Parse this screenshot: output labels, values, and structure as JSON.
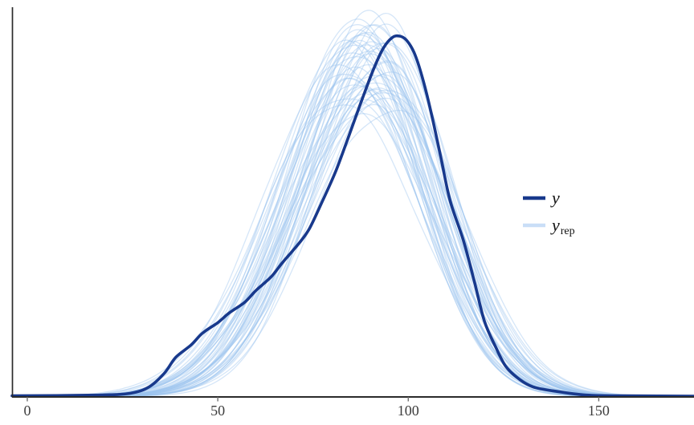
{
  "chart_data": {
    "type": "area",
    "subtype": "density_overlay",
    "title": "",
    "xlabel": "",
    "ylabel": "",
    "x_ticks": [
      0,
      50,
      100,
      150
    ],
    "xlim": [
      -4,
      175
    ],
    "ylim": [
      0,
      1.12
    ],
    "grid": "off",
    "legend_position": "right-middle",
    "y_density": {
      "name": "y",
      "x": [
        -4,
        18,
        27,
        32,
        36,
        39,
        43,
        46,
        50,
        53,
        57,
        60,
        64,
        67,
        71,
        74,
        77.5,
        81,
        84.5,
        88,
        91,
        93.5,
        95.8,
        97.7,
        99.5,
        101.5,
        103.6,
        106,
        108.5,
        111,
        114.5,
        117.3,
        120,
        123,
        125.7,
        129.3,
        132.7,
        137.8,
        146.8,
        157.4,
        175
      ],
      "d": [
        0.002,
        0.004,
        0.009,
        0.027,
        0.065,
        0.109,
        0.143,
        0.176,
        0.205,
        0.232,
        0.261,
        0.294,
        0.332,
        0.372,
        0.421,
        0.465,
        0.543,
        0.626,
        0.726,
        0.828,
        0.911,
        0.967,
        0.996,
        1.0,
        0.989,
        0.955,
        0.889,
        0.788,
        0.666,
        0.543,
        0.432,
        0.321,
        0.209,
        0.136,
        0.082,
        0.047,
        0.027,
        0.016,
        0.004,
        0.002,
        0.001
      ]
    },
    "yrep_curves": {
      "name": "y_rep",
      "count": 50,
      "params_format": [
        "mu",
        "peak_height",
        "sigma_left",
        "sigma_right"
      ],
      "params": [
        [
          88,
          1.02,
          18.5,
          17
        ],
        [
          91,
          0.96,
          19.5,
          18
        ],
        [
          86,
          0.88,
          20.5,
          19
        ],
        [
          93,
          1.05,
          18,
          16.5
        ],
        [
          89,
          0.8,
          21.5,
          20
        ],
        [
          95,
          0.92,
          19.5,
          17
        ],
        [
          84,
          0.85,
          21,
          19.5
        ],
        [
          90,
          1.05,
          17.5,
          16
        ],
        [
          87,
          0.95,
          20,
          18
        ],
        [
          92,
          0.86,
          20.5,
          19
        ],
        [
          85,
          0.98,
          19,
          17.5
        ],
        [
          94,
          0.82,
          21.5,
          19.5
        ],
        [
          89,
          1.01,
          18.5,
          16.5
        ],
        [
          91,
          0.9,
          20,
          18.5
        ],
        [
          86,
          1.04,
          18,
          16.5
        ],
        [
          96,
          0.87,
          19.5,
          17.5
        ],
        [
          83,
          0.93,
          20.5,
          18.5
        ],
        [
          90,
          0.79,
          22,
          20
        ],
        [
          88,
          1.0,
          19,
          17
        ],
        [
          93,
          0.94,
          19.5,
          17.5
        ],
        [
          87,
          0.83,
          21,
          19
        ],
        [
          92,
          1.03,
          18,
          16.5
        ],
        [
          85,
          0.91,
          20,
          18.5
        ],
        [
          95,
          0.97,
          19,
          17
        ],
        [
          89,
          0.85,
          20.5,
          19
        ],
        [
          91,
          1.04,
          17.5,
          16
        ],
        [
          84,
          0.89,
          20.5,
          18.5
        ],
        [
          94,
          0.92,
          19.5,
          17.5
        ],
        [
          88,
          0.78,
          21.5,
          20
        ],
        [
          90,
          0.99,
          18.5,
          17
        ],
        [
          86,
          0.95,
          19.5,
          17.5
        ],
        [
          93,
          0.84,
          21,
          19
        ],
        [
          89,
          1.02,
          18,
          16.5
        ],
        [
          92,
          0.88,
          20,
          18.5
        ],
        [
          87,
          0.96,
          19,
          17.5
        ],
        [
          96,
          0.81,
          21.5,
          19
        ],
        [
          85,
          1.0,
          18.5,
          17
        ],
        [
          91,
          0.93,
          19.5,
          18
        ],
        [
          88,
          0.87,
          20.5,
          18.5
        ],
        [
          94,
          1.03,
          17.5,
          16.5
        ],
        [
          86,
          0.9,
          20,
          18.5
        ],
        [
          90,
          0.96,
          19,
          17
        ],
        [
          83,
          0.82,
          21.5,
          19.5
        ],
        [
          93,
          0.98,
          18.5,
          17
        ],
        [
          89,
          0.91,
          19.5,
          18
        ],
        [
          95,
          0.86,
          20.5,
          18.5
        ],
        [
          87,
          1.05,
          17.5,
          16
        ],
        [
          92,
          0.94,
          19,
          17.5
        ],
        [
          84,
          0.97,
          19.5,
          17.5
        ],
        [
          90,
          0.89,
          20,
          18.5
        ]
      ]
    },
    "colors": {
      "y_line": "#18398c",
      "yrep_line": "#9cc3ef",
      "yrep_opacity": 0.42,
      "yrep_legend_swatch": "#c9def7",
      "axis": "#2b2b2b",
      "tick": "#6e6e6e",
      "tick_label": "#3d3d3d",
      "background": "#ffffff"
    }
  },
  "legend": {
    "items": [
      {
        "id": "y",
        "label": "y",
        "color": "#18398c"
      },
      {
        "id": "yrep",
        "label_base": "y",
        "label_sub": "rep",
        "color": "#c9def7"
      }
    ]
  }
}
